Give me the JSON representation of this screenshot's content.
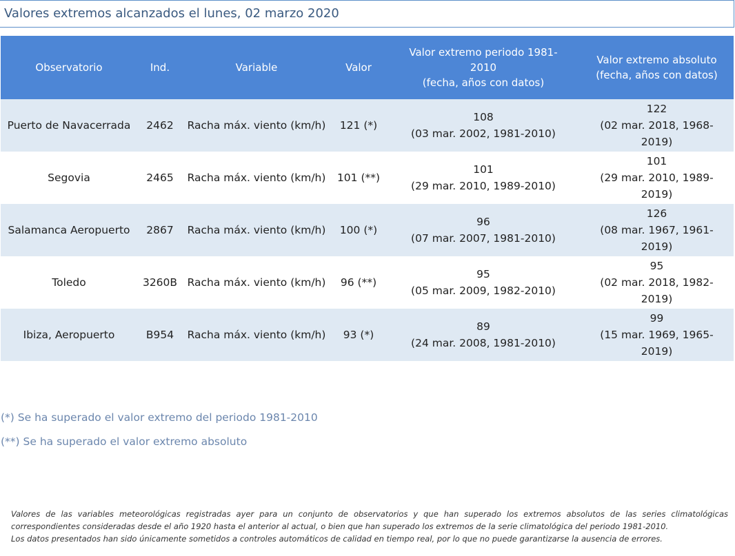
{
  "title": "Valores extremos alcanzados el lunes, 02 marzo 2020",
  "table": {
    "headers": {
      "observatorio": "Observatorio",
      "ind": "Ind.",
      "variable": "Variable",
      "valor": "Valor",
      "periodo_line1": "Valor extremo periodo 1981-",
      "periodo_line2": "2010",
      "periodo_line3": "(fecha, años con datos)",
      "absoluto_line1": "Valor extremo absoluto",
      "absoluto_line2": "(fecha, años con datos)"
    },
    "rows": [
      {
        "observatorio": "Puerto de Navacerrada",
        "ind": "2462",
        "variable": "Racha máx. viento (km/h)",
        "valor": "121 (*)",
        "periodo_valor": "108",
        "periodo_detalle": "(03 mar. 2002, 1981-2010)",
        "absoluto_valor": "122",
        "absoluto_detalle": "(02 mar. 2018, 1968-2019)"
      },
      {
        "observatorio": "Segovia",
        "ind": "2465",
        "variable": "Racha máx. viento (km/h)",
        "valor": "101 (**)",
        "periodo_valor": "101",
        "periodo_detalle": "(29 mar. 2010, 1989-2010)",
        "absoluto_valor": "101",
        "absoluto_detalle": "(29 mar. 2010, 1989-2019)"
      },
      {
        "observatorio": "Salamanca Aeropuerto",
        "ind": "2867",
        "variable": "Racha máx. viento (km/h)",
        "valor": "100 (*)",
        "periodo_valor": "96",
        "periodo_detalle": "(07 mar. 2007, 1981-2010)",
        "absoluto_valor": "126",
        "absoluto_detalle": "(08 mar. 1967, 1961-2019)"
      },
      {
        "observatorio": "Toledo",
        "ind": "3260B",
        "variable": "Racha máx. viento (km/h)",
        "valor": "96 (**)",
        "periodo_valor": "95",
        "periodo_detalle": "(05 mar. 2009, 1982-2010)",
        "absoluto_valor": "95",
        "absoluto_detalle": "(02 mar. 2018, 1982-2019)"
      },
      {
        "observatorio": "Ibiza, Aeropuerto",
        "ind": "B954",
        "variable": "Racha máx. viento (km/h)",
        "valor": "93 (*)",
        "periodo_valor": "89",
        "periodo_detalle": "(24 mar. 2008, 1981-2010)",
        "absoluto_valor": "99",
        "absoluto_detalle": "(15 mar. 1969, 1965-2019)"
      }
    ]
  },
  "legend": {
    "single": "(*) Se ha superado el valor extremo del periodo 1981-2010",
    "double": "(**) Se ha superado el valor extremo absoluto"
  },
  "footnote": {
    "line1": "Valores de las variables meteorológicas registradas ayer para un conjunto de observatorios y que han superado los extremos absolutos de las series climatológicas correspondientes consideradas desde el año 1920 hasta el anterior al actual, o bien que han superado los extremos de la serie climatológica del periodo 1981-2010.",
    "line2": "Los datos presentados han sido únicamente sometidos a controles automáticos de calidad en tiempo real, por lo que no puede garantizarse la ausencia de errores."
  }
}
